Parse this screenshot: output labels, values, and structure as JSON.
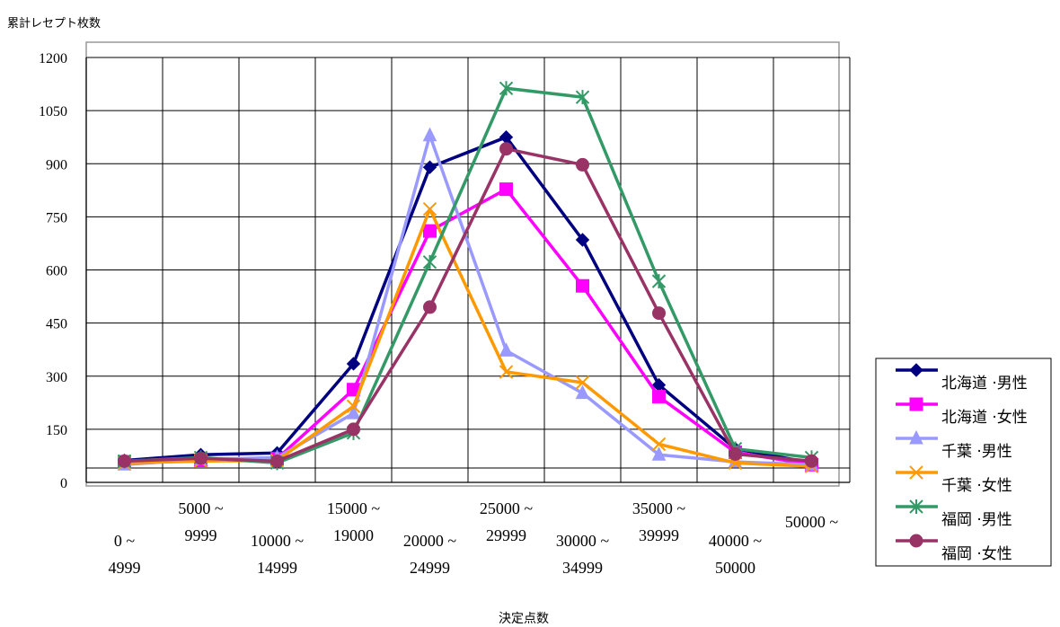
{
  "chart_data": {
    "type": "line",
    "ylabel": "累計レセプト枚数",
    "xlabel": "決定点数",
    "ylim": [
      0,
      1200
    ],
    "yticks": [
      0,
      150,
      300,
      450,
      600,
      750,
      900,
      1050,
      1200
    ],
    "grid": true,
    "legend_position": "right",
    "categories": [
      [
        "0 ~",
        "4999"
      ],
      [
        "5000 ~",
        "9999"
      ],
      [
        "10000 ~",
        "14999"
      ],
      [
        "15000 ~",
        "19000"
      ],
      [
        "20000 ~",
        "24999"
      ],
      [
        "25000 ~",
        "29999"
      ],
      [
        "30000 ~",
        "34999"
      ],
      [
        "35000 ~",
        "39999"
      ],
      [
        "40000 ~",
        "50000"
      ],
      [
        "50000 ~"
      ]
    ],
    "series": [
      {
        "name": "北海道 ·男性",
        "color": "#000080",
        "marker": "diamond",
        "values": [
          62,
          78,
          83,
          335,
          890,
          975,
          685,
          275,
          95,
          55
        ]
      },
      {
        "name": "北海道 ·女性",
        "color": "#ff00ff",
        "marker": "square",
        "values": [
          58,
          62,
          67,
          262,
          710,
          828,
          555,
          242,
          85,
          50
        ]
      },
      {
        "name": "千葉 ·男性",
        "color": "#9999ff",
        "marker": "triangle",
        "values": [
          50,
          65,
          70,
          195,
          980,
          372,
          252,
          78,
          58,
          50
        ]
      },
      {
        "name": "千葉 ·女性",
        "color": "#ff9900",
        "marker": "x",
        "values": [
          55,
          60,
          62,
          215,
          772,
          312,
          282,
          108,
          55,
          45
        ]
      },
      {
        "name": "福岡 ·男性",
        "color": "#339966",
        "marker": "star",
        "values": [
          60,
          70,
          55,
          140,
          622,
          1113,
          1088,
          568,
          95,
          70
        ]
      },
      {
        "name": "福岡 ·女性",
        "color": "#993366",
        "marker": "circle",
        "values": [
          60,
          68,
          60,
          150,
          495,
          942,
          897,
          478,
          80,
          60
        ]
      }
    ]
  }
}
